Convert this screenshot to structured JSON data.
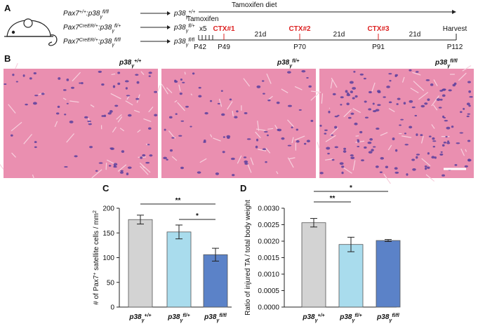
{
  "panel_a": {
    "label": "A",
    "genotypes": [
      {
        "source": [
          {
            "t": "Pax7"
          },
          {
            "t": "+/+",
            "pos": "sup"
          },
          {
            "t": ":p38"
          },
          {
            "t": "γ",
            "pos": "sub"
          },
          {
            "t": "fl/fl",
            "pos": "sup"
          }
        ],
        "result": [
          {
            "t": "p38"
          },
          {
            "t": "γ",
            "pos": "sub"
          },
          {
            "t": "+/+",
            "pos": "sup"
          }
        ]
      },
      {
        "source": [
          {
            "t": "Pax7"
          },
          {
            "t": "CreER/+",
            "pos": "sup"
          },
          {
            "t": ":p38"
          },
          {
            "t": "γ",
            "pos": "sub"
          },
          {
            "t": "fl/+",
            "pos": "sup"
          }
        ],
        "result": [
          {
            "t": "p38"
          },
          {
            "t": "γ",
            "pos": "sub"
          },
          {
            "t": "fl/+",
            "pos": "sup"
          }
        ]
      },
      {
        "source": [
          {
            "t": "Pax7"
          },
          {
            "t": "CreER/+",
            "pos": "sup"
          },
          {
            "t": ":p38"
          },
          {
            "t": "γ",
            "pos": "sub"
          },
          {
            "t": "fl/fl",
            "pos": "sup"
          }
        ],
        "result": [
          {
            "t": "p38"
          },
          {
            "t": "γ",
            "pos": "sub"
          },
          {
            "t": "fl/fl",
            "pos": "sup"
          }
        ]
      }
    ],
    "timeline": {
      "diet": "Tamoxifen diet",
      "tamoxifen": "Tamoxifen",
      "doses": "x5",
      "injections": [
        "CTX#1",
        "CTX#2",
        "CTX#3"
      ],
      "intervals": [
        "21d",
        "21d",
        "21d"
      ],
      "harvest": "Harvest",
      "days": [
        "P42",
        "P49",
        "P70",
        "P91",
        "P112"
      ]
    }
  },
  "panel_b": {
    "label": "B",
    "images": [
      {
        "caption": [
          {
            "t": "p38"
          },
          {
            "t": "γ",
            "pos": "sub"
          },
          {
            "t": "+/+",
            "pos": "sup"
          }
        ]
      },
      {
        "caption": [
          {
            "t": "p38"
          },
          {
            "t": "γ",
            "pos": "sub"
          },
          {
            "t": "fl/+",
            "pos": "sup"
          }
        ]
      },
      {
        "caption": [
          {
            "t": "p38"
          },
          {
            "t": "γ",
            "pos": "sub"
          },
          {
            "t": "fl/fl",
            "pos": "sup"
          }
        ]
      }
    ]
  },
  "chart_data": [
    {
      "type": "bar",
      "panel_label": "C",
      "y_label": [
        {
          "t": "# of Pax7"
        },
        {
          "t": "+",
          "pos": "sup"
        },
        {
          "t": " satellite cells / mm"
        },
        {
          "t": "2",
          "pos": "sup"
        }
      ],
      "categories": [
        [
          {
            "t": "p38"
          },
          {
            "t": "γ",
            "pos": "sub"
          },
          {
            "t": "+/+",
            "pos": "sup"
          }
        ],
        [
          {
            "t": "p38"
          },
          {
            "t": "γ",
            "pos": "sub"
          },
          {
            "t": "fl/+",
            "pos": "sup"
          }
        ],
        [
          {
            "t": "p38"
          },
          {
            "t": "γ",
            "pos": "sub"
          },
          {
            "t": "fl/fl",
            "pos": "sup"
          }
        ]
      ],
      "values": [
        177,
        152,
        106
      ],
      "errors": [
        9,
        14,
        13
      ],
      "colors": [
        "#d3d3d3",
        "#a9dced",
        "#5b82c8"
      ],
      "ylim": [
        0,
        200
      ],
      "yticks": [
        0,
        50,
        100,
        150,
        200
      ],
      "annotations": [
        {
          "text": "**"
        },
        {
          "text": "*"
        }
      ]
    },
    {
      "type": "bar",
      "panel_label": "D",
      "y_label": [
        {
          "t": "Ratio of injured TA / total body weight"
        }
      ],
      "categories": [
        [
          {
            "t": "p38"
          },
          {
            "t": "γ",
            "pos": "sub"
          },
          {
            "t": "+/+",
            "pos": "sup"
          }
        ],
        [
          {
            "t": "p38"
          },
          {
            "t": "γ",
            "pos": "sub"
          },
          {
            "t": "fl/+",
            "pos": "sup"
          }
        ],
        [
          {
            "t": "p38"
          },
          {
            "t": "γ",
            "pos": "sub"
          },
          {
            "t": "fl/fl",
            "pos": "sup"
          }
        ]
      ],
      "values": [
        0.00256,
        0.0019,
        0.00202
      ],
      "errors": [
        0.00013,
        0.00022,
        3e-05
      ],
      "colors": [
        "#d3d3d3",
        "#a9dced",
        "#5b82c8"
      ],
      "ylim": [
        0,
        0.003
      ],
      "yticks": [
        {
          "value": 0,
          "label": "0.0000"
        },
        {
          "value": 0.0005,
          "label": "0.0005"
        },
        {
          "value": 0.001,
          "label": "0.0010"
        },
        {
          "value": 0.0015,
          "label": "0.0015"
        },
        {
          "value": 0.002,
          "label": "0.0020"
        },
        {
          "value": 0.0025,
          "label": "0.0025"
        },
        {
          "value": 0.003,
          "label": "0.0030"
        }
      ],
      "annotations": [
        {
          "text": "**"
        },
        {
          "text": "*"
        }
      ]
    }
  ]
}
